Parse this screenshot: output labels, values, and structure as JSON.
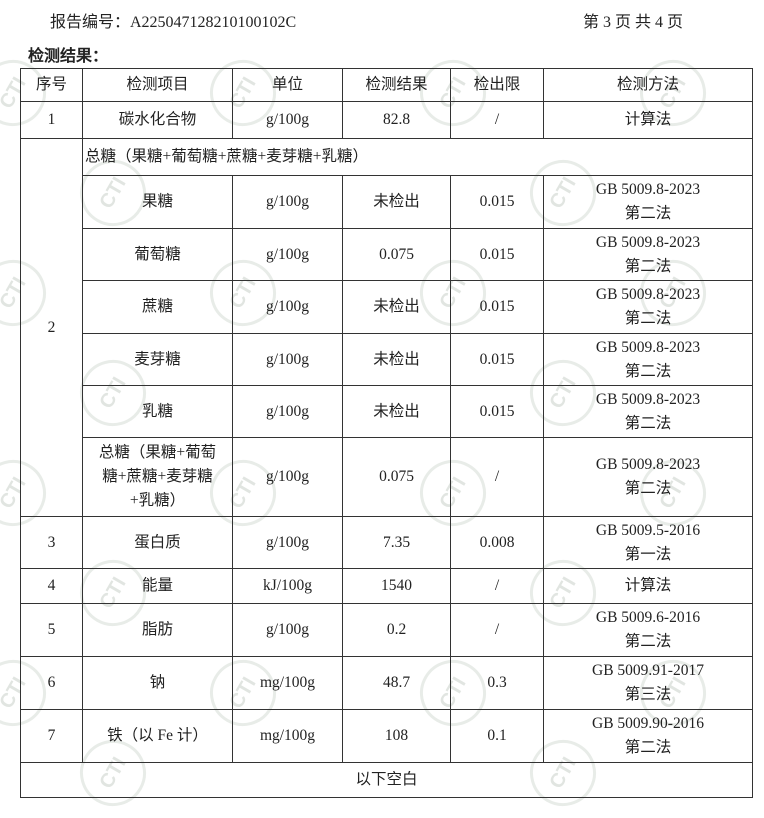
{
  "header": {
    "report_no": "报告编号：A225047128210100102C",
    "page": "第 3 页 共 4 页"
  },
  "section_title": "检测结果：",
  "watermark": "CTI",
  "columns": [
    "序号",
    "检测项目",
    "单位",
    "检测结果",
    "检出限",
    "检测方法"
  ],
  "row1": {
    "no": "1",
    "item": "碳水化合物",
    "unit": "g/100g",
    "result": "82.8",
    "limit": "/",
    "method": "计算法"
  },
  "row2": {
    "no": "2",
    "group": "总糖（果糖+葡萄糖+蔗糖+麦芽糖+乳糖）",
    "subs": [
      {
        "item": "果糖",
        "unit": "g/100g",
        "result": "未检出",
        "limit": "0.015",
        "method1": "GB 5009.8-2023",
        "method2": "第二法"
      },
      {
        "item": "葡萄糖",
        "unit": "g/100g",
        "result": "0.075",
        "limit": "0.015",
        "method1": "GB 5009.8-2023",
        "method2": "第二法"
      },
      {
        "item": "蔗糖",
        "unit": "g/100g",
        "result": "未检出",
        "limit": "0.015",
        "method1": "GB 5009.8-2023",
        "method2": "第二法"
      },
      {
        "item": "麦芽糖",
        "unit": "g/100g",
        "result": "未检出",
        "limit": "0.015",
        "method1": "GB 5009.8-2023",
        "method2": "第二法"
      },
      {
        "item": "乳糖",
        "unit": "g/100g",
        "result": "未检出",
        "limit": "0.015",
        "method1": "GB 5009.8-2023",
        "method2": "第二法"
      },
      {
        "item": "总糖（果糖+葡萄糖+蔗糖+麦芽糖+乳糖）",
        "unit": "g/100g",
        "result": "0.075",
        "limit": "/",
        "method1": "GB 5009.8-2023",
        "method2": "第二法"
      }
    ]
  },
  "rows": [
    {
      "no": "3",
      "item": "蛋白质",
      "unit": "g/100g",
      "result": "7.35",
      "limit": "0.008",
      "method1": "GB 5009.5-2016",
      "method2": "第一法"
    },
    {
      "no": "4",
      "item": "能量",
      "unit": "kJ/100g",
      "result": "1540",
      "limit": "/",
      "method1": "计算法",
      "method2": ""
    },
    {
      "no": "5",
      "item": "脂肪",
      "unit": "g/100g",
      "result": "0.2",
      "limit": "/",
      "method1": "GB 5009.6-2016",
      "method2": "第二法"
    },
    {
      "no": "6",
      "item": "钠",
      "unit": "mg/100g",
      "result": "48.7",
      "limit": "0.3",
      "method1": "GB 5009.91-2017",
      "method2": "第三法"
    },
    {
      "no": "7",
      "item": "铁（以 Fe 计）",
      "unit": "mg/100g",
      "result": "108",
      "limit": "0.1",
      "method1": "GB 5009.90-2016",
      "method2": "第二法"
    }
  ],
  "footer_row": "以下空白"
}
